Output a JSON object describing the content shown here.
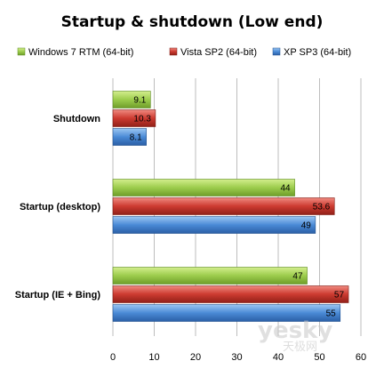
{
  "chart_data": {
    "type": "bar",
    "orientation": "horizontal",
    "title": "Startup & shutdown  (Low end)",
    "categories": [
      "Shutdown",
      "Startup (desktop)",
      "Startup (IE + Bing)"
    ],
    "series": [
      {
        "name": "Windows 7 RTM  (64-bit)",
        "color": "#8fbf3f",
        "values": [
          9.1,
          44,
          47
        ]
      },
      {
        "name": "Vista SP2 (64-bit)",
        "color": "#c0392b",
        "values": [
          10.3,
          53.6,
          57
        ]
      },
      {
        "name": "XP SP3 (64-bit)",
        "color": "#3f7fc8",
        "values": [
          8.1,
          49,
          55
        ]
      }
    ],
    "data_labels": [
      [
        "9.1",
        "10.3",
        "8.1"
      ],
      [
        "44",
        "53.6",
        "49"
      ],
      [
        "47",
        "57",
        "55"
      ]
    ],
    "xlim": [
      0,
      60
    ],
    "xticks": [
      "0",
      "10",
      "20",
      "30",
      "40",
      "50",
      "60"
    ],
    "grid": true,
    "legend_position": "top"
  },
  "watermark": {
    "text": "yesky",
    "subtext": "天极网"
  }
}
